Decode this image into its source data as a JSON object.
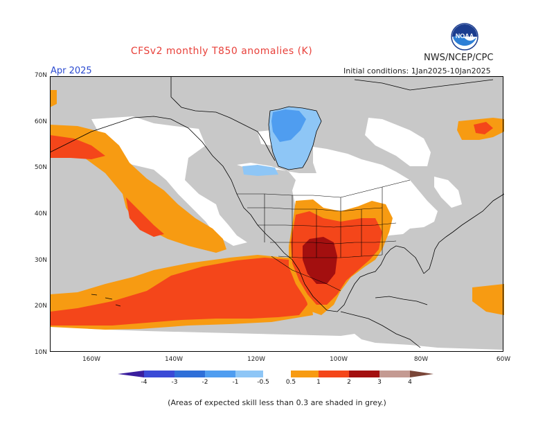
{
  "header": {
    "title": "CFSv2 monthly T850 anomalies (K)",
    "agency": "NWS/NCEP/CPC",
    "month": "Apr 2025",
    "initial_conditions": "Initial conditions: 1Jan2025-10Jan2025"
  },
  "logo": {
    "text": "NOAA",
    "icon": "noaa-logo-icon"
  },
  "axes": {
    "lat_labels": [
      "70N",
      "60N",
      "50N",
      "40N",
      "30N",
      "20N",
      "10N"
    ],
    "lon_labels": [
      "160W",
      "140W",
      "120W",
      "100W",
      "80W",
      "60W"
    ]
  },
  "colorbar": {
    "labels": [
      "-4",
      "-3",
      "-2",
      "-1",
      "-0.5",
      "0.5",
      "1",
      "2",
      "3",
      "4"
    ],
    "colors": [
      "#3a1e9e",
      "#3a4ad6",
      "#2f6fd8",
      "#4f9df0",
      "#8ec6f6",
      "#ffffff",
      "#f79b12",
      "#f4461a",
      "#a30f0f",
      "#c49a92",
      "#7a4638"
    ]
  },
  "legend_colors": {
    "grey_low_skill": "#c8c8c8",
    "orange": "#f79b12",
    "red_orange": "#f4461a",
    "dark_red": "#a30f0f",
    "light_blue": "#8ec6f6",
    "blue": "#4f9df0"
  },
  "footnote": "(Areas of expected skill less than 0.3 are shaded in grey.)"
}
